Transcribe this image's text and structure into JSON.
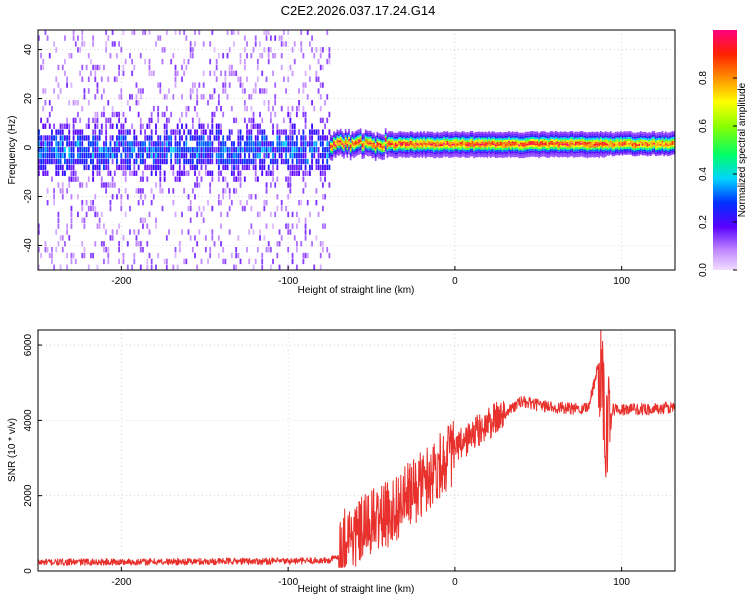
{
  "title": "C2E2.2026.037.17.24.G14",
  "colors": {
    "snr_line": "#e8302c",
    "axis": "#000000",
    "grid": "#bbbbbb"
  },
  "colorbar": {
    "label": "Normalized spectral amplitude",
    "range": [
      0,
      1
    ],
    "ticks": [
      "0.0",
      "0.2",
      "0.4",
      "0.6",
      "0.8"
    ],
    "tick_values": [
      0.0,
      0.2,
      0.4,
      0.6,
      0.8
    ]
  },
  "chart_data": [
    {
      "type": "heatmap",
      "xlabel": "Height of straight line (km)",
      "ylabel": "Frequency (Hz)",
      "xlim": [
        -250,
        132
      ],
      "ylim": [
        -50,
        48
      ],
      "xticks": [
        -200,
        -100,
        0,
        100
      ],
      "xtick_labels": [
        "-200",
        "-100",
        "0",
        "100"
      ],
      "yticks": [
        -40,
        -20,
        0,
        20,
        40
      ],
      "ytick_labels": [
        "-40",
        "-20",
        "0",
        "20",
        "40"
      ],
      "grid": true,
      "regions": [
        {
          "x": [
            -250,
            -75
          ],
          "freq_spread_hz": [
            -50,
            48
          ],
          "core_hz": [
            -15,
            10
          ],
          "amplitude": "low, noisy"
        },
        {
          "x": [
            -75,
            132
          ],
          "freq_center_hz": 1,
          "amplitude": "high, narrow tone"
        }
      ]
    },
    {
      "type": "line",
      "xlabel": "Height of straight line (km)",
      "ylabel": "SNR (10 * v/v)",
      "xlim": [
        -250,
        132
      ],
      "ylim": [
        0,
        6400
      ],
      "xticks": [
        -200,
        -100,
        0,
        100
      ],
      "xtick_labels": [
        "-200",
        "-100",
        "0",
        "100"
      ],
      "yticks": [
        0,
        2000,
        4000,
        6000
      ],
      "ytick_labels": [
        "0",
        "2000",
        "4000",
        "6000"
      ],
      "grid": true,
      "series": [
        {
          "x": [
            -250,
            -220,
            -190,
            -160,
            -130,
            -100,
            -75,
            -70,
            -65,
            -60,
            -50,
            -40,
            -30,
            -20,
            -10,
            0,
            10,
            20,
            30,
            40,
            50,
            60,
            70,
            80,
            88,
            90,
            92,
            95,
            100,
            110,
            120,
            132
          ],
          "values": [
            230,
            240,
            240,
            250,
            260,
            260,
            280,
            400,
            1000,
            900,
            1300,
            1500,
            1900,
            2300,
            2800,
            3200,
            3600,
            3900,
            4200,
            4500,
            4400,
            4350,
            4300,
            4350,
            5800,
            3800,
            4200,
            4300,
            4280,
            4300,
            4300,
            4350
          ]
        }
      ]
    }
  ]
}
